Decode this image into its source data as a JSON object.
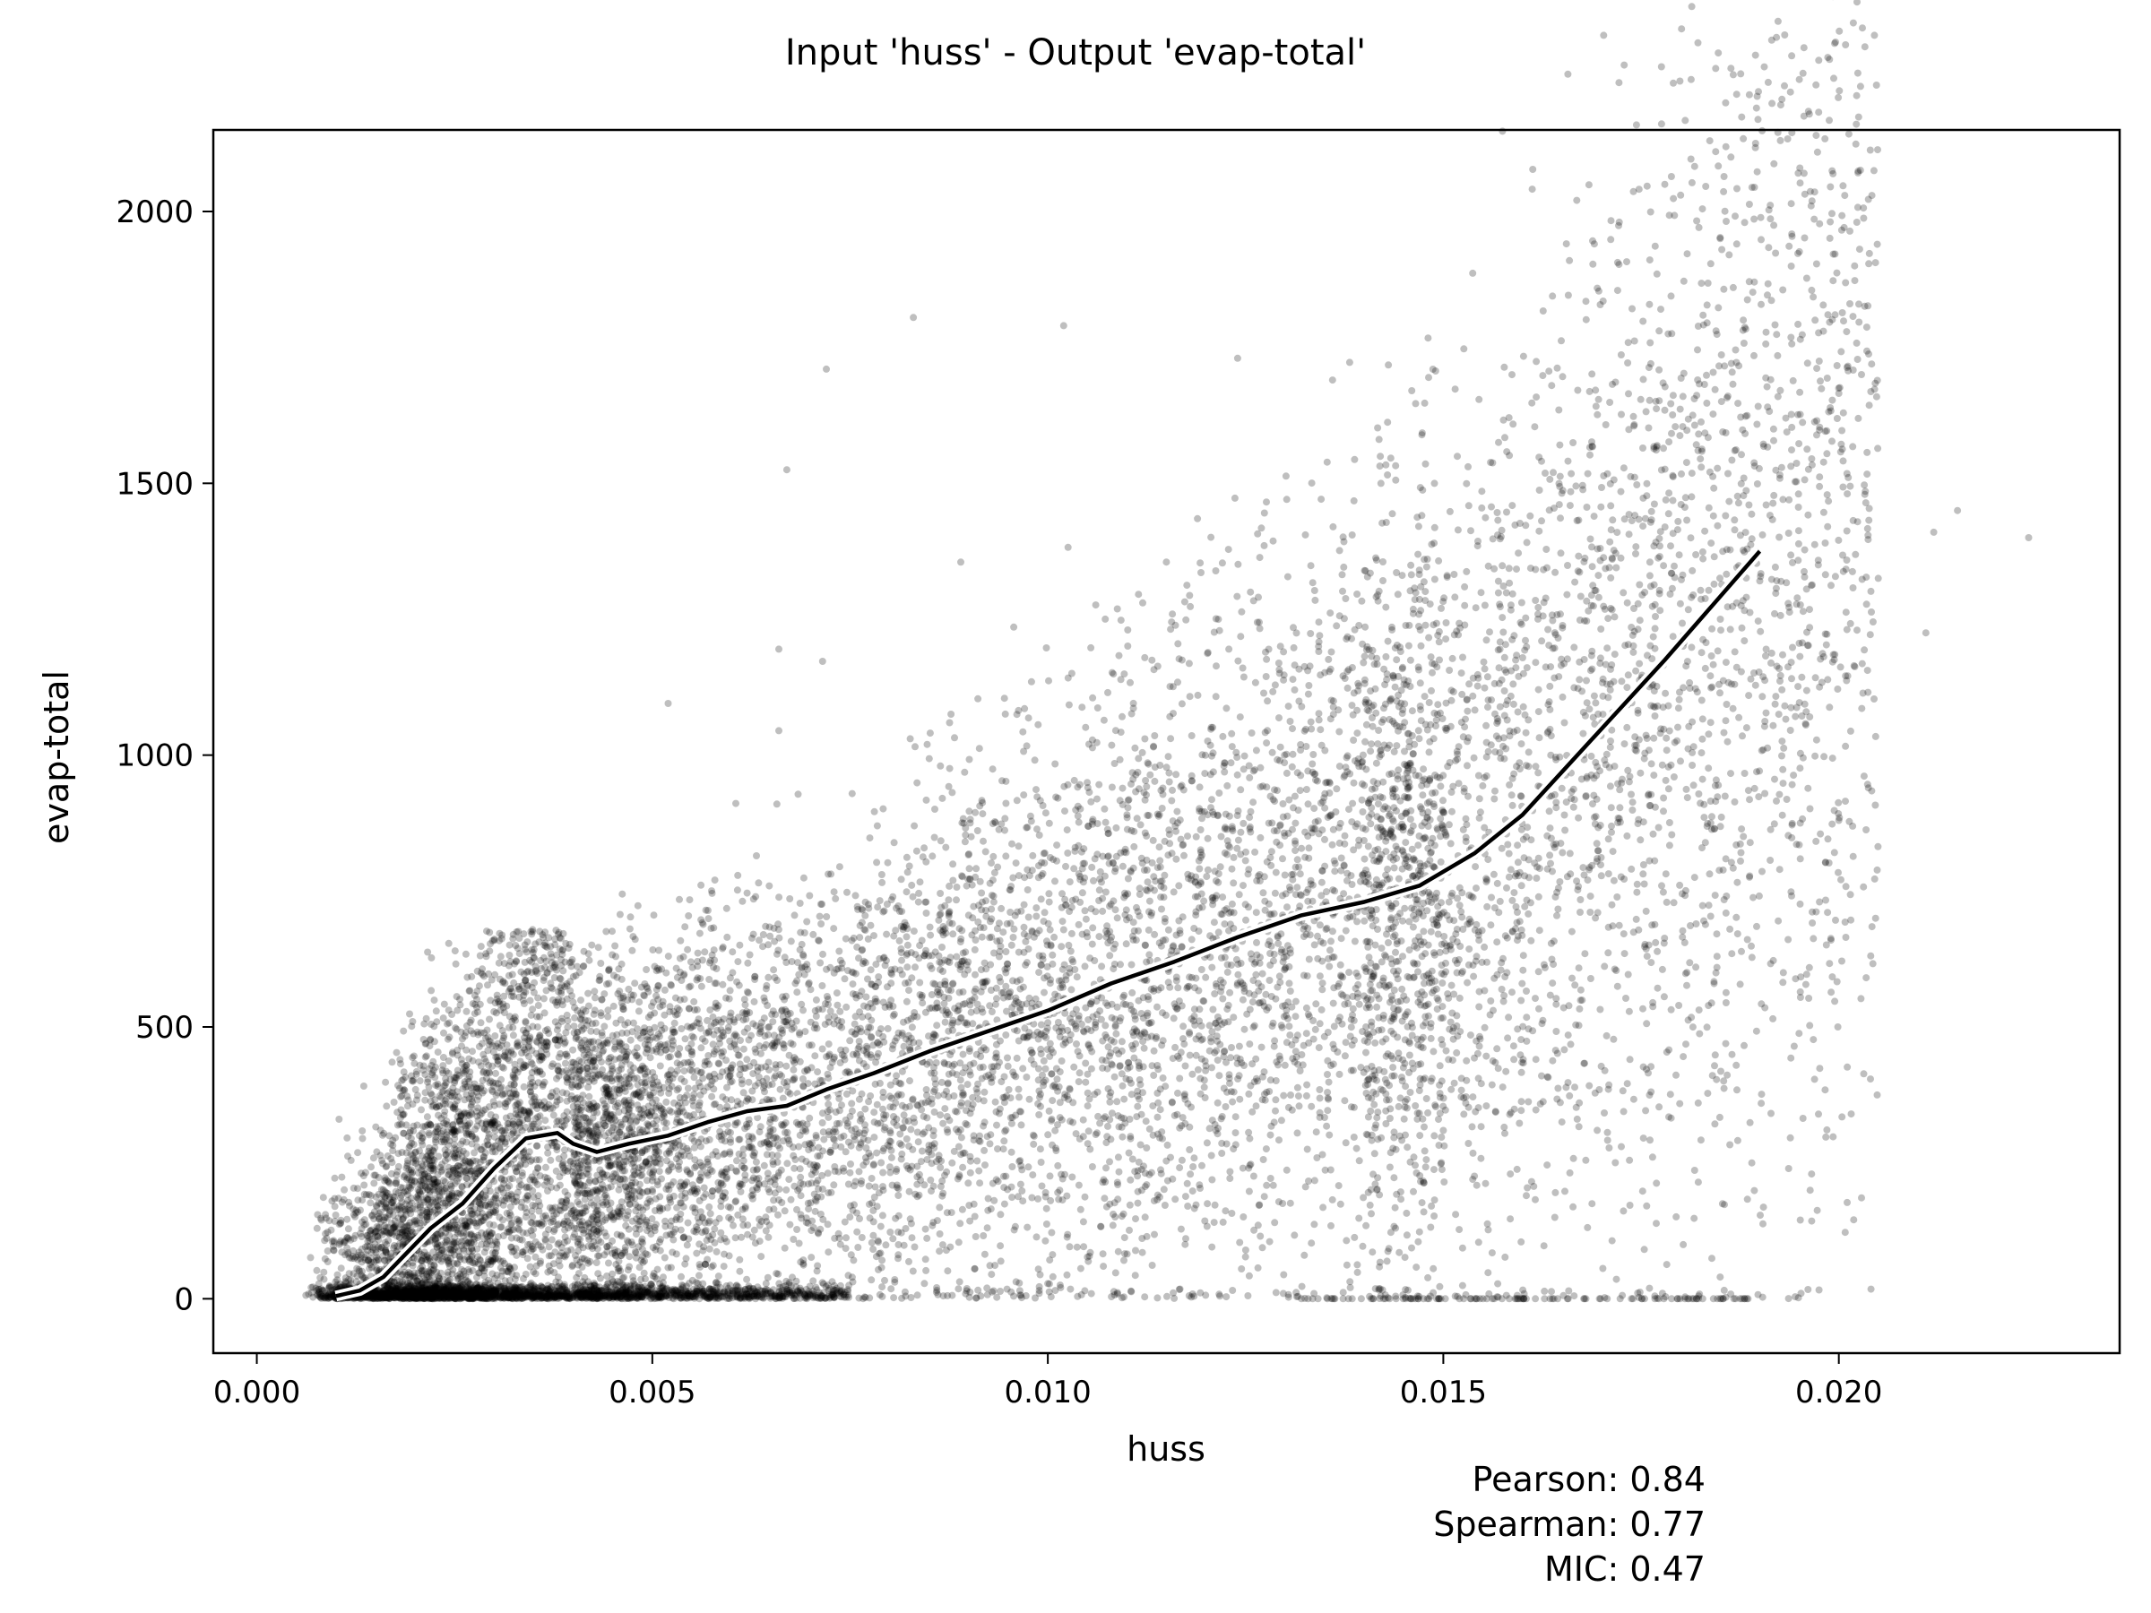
{
  "chart_data": {
    "type": "scatter",
    "title": "Input 'huss' - Output 'evap-total'",
    "xlabel": "huss",
    "ylabel": "evap-total",
    "xlim": [
      -0.00055,
      0.02355
    ],
    "ylim": [
      -100,
      2150
    ],
    "x_ticks": [
      0.0,
      0.005,
      0.01,
      0.015,
      0.02
    ],
    "x_tick_labels": [
      "0.000",
      "0.005",
      "0.010",
      "0.015",
      "0.020"
    ],
    "y_ticks": [
      0,
      500,
      1000,
      1500,
      2000
    ],
    "y_tick_labels": [
      "0",
      "500",
      "1000",
      "1500",
      "2000"
    ],
    "grid": false,
    "point_color": "#000000",
    "point_alpha": 0.25,
    "line_color": "#000000",
    "line_outline_color": "#ffffff",
    "series": [
      {
        "kind": "scatter-density",
        "approx_points": 60000,
        "x_range": [
          0.0006,
          0.0225
        ],
        "y_range": [
          0,
          2050
        ]
      },
      {
        "kind": "line",
        "x": [
          0.001,
          0.0013,
          0.0016,
          0.0019,
          0.0022,
          0.0026,
          0.003,
          0.0034,
          0.0038,
          0.004,
          0.0043,
          0.0047,
          0.0052,
          0.0057,
          0.0062,
          0.0067,
          0.0072,
          0.0078,
          0.0085,
          0.0092,
          0.01,
          0.0108,
          0.0116,
          0.0124,
          0.0132,
          0.014,
          0.0147,
          0.0154,
          0.016,
          0.0166,
          0.0172,
          0.0178,
          0.0184,
          0.019
        ],
        "y": [
          5,
          15,
          40,
          85,
          130,
          175,
          240,
          295,
          305,
          285,
          270,
          285,
          300,
          325,
          345,
          355,
          385,
          415,
          455,
          490,
          530,
          580,
          620,
          665,
          705,
          730,
          760,
          820,
          890,
          985,
          1080,
          1175,
          1275,
          1375
        ]
      },
      {
        "kind": "outliers",
        "x": [
          0.0083,
          0.0072,
          0.0102,
          0.0067,
          0.0066,
          0.0178,
          0.018,
          0.0185,
          0.0202,
          0.0197,
          0.0224,
          0.0215,
          0.0212,
          0.0211,
          0.02,
          0.0124,
          0.0136,
          0.0089,
          0.0112,
          0.0066,
          0.0052,
          0.0189,
          0.0185
        ],
        "y": [
          1805,
          1710,
          1790,
          1525,
          1195,
          2050,
          2030,
          1950,
          1900,
          1800,
          1400,
          1450,
          1410,
          1225,
          880,
          1730,
          1690,
          1355,
          1280,
          1045,
          1095,
          250,
          40
        ]
      },
      {
        "kind": "zero-band",
        "x_range": [
          0.0132,
          0.0191
        ],
        "y": 0
      }
    ],
    "annotations": {
      "pearson": "Pearson: 0.84",
      "spearman": "Spearman: 0.77",
      "mic": "MIC: 0.47"
    }
  }
}
